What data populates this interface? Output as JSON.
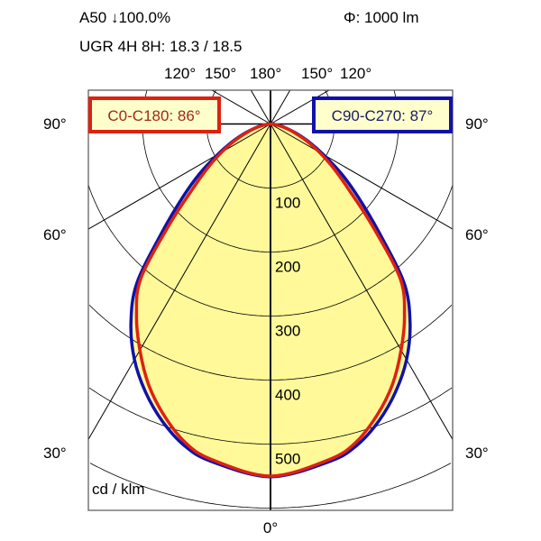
{
  "header": {
    "line1_left": "A50 ↓100.0%",
    "line1_right": "Φ: 1000 lm",
    "line2": "UGR 4H 8H: 18.3 / 18.5"
  },
  "colors": {
    "fill": "#fff99a",
    "c0_c180": "#dd2211",
    "c90_c270": "#1111aa",
    "legend_bg": "#ffffcc",
    "c0_text": "#a02a14",
    "c90_text": "#1a1a6a"
  },
  "chart_data": {
    "type": "polar",
    "unit_label": "cd / klm",
    "radial_ticks": [
      100,
      200,
      300,
      400,
      500
    ],
    "radial_max": 600,
    "angle_step": 30,
    "angle_labels": {
      "top": [
        "120°",
        "150°",
        "180°",
        "150°",
        "120°"
      ],
      "left": [
        "90°",
        "60°",
        "30°"
      ],
      "right": [
        "90°",
        "60°",
        "30°"
      ],
      "bottom": "0°"
    },
    "grid": true,
    "angles": [
      0,
      10,
      15,
      20,
      25,
      30,
      35,
      40,
      45,
      50,
      55,
      60,
      65,
      70,
      75,
      80,
      85,
      90
    ],
    "series": [
      {
        "name": "C0-C180: 86°",
        "key": "c0_c180",
        "values": [
          550,
          532,
          515,
          485,
          450,
          408,
          365,
          315,
          225,
          160,
          120,
          88,
          62,
          40,
          24,
          12,
          5,
          0
        ]
      },
      {
        "name": "C90-C270: 87°",
        "key": "c90_c270",
        "values": [
          551,
          535,
          520,
          494,
          462,
          425,
          380,
          325,
          240,
          180,
          135,
          95,
          66,
          43,
          26,
          13,
          5,
          0
        ]
      }
    ]
  }
}
